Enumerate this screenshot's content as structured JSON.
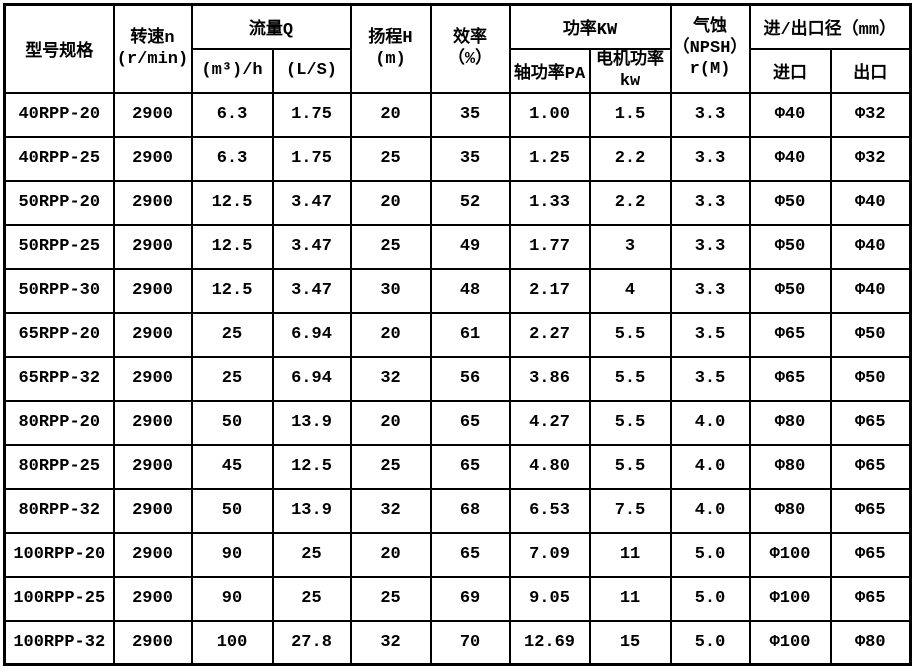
{
  "table": {
    "colors": {
      "border": "#000000",
      "text": "#000000",
      "background": "#ffffff"
    },
    "header": {
      "model": "型号规格",
      "speed_line1": "转速n",
      "speed_line2": "(r/min)",
      "flow_group": "流量Q",
      "flow_m3h": "(m³)/h",
      "flow_ls": "(L/S)",
      "head_line1": "扬程H",
      "head_line2": "(m)",
      "eff_line1": "效率",
      "eff_line2": "（%）",
      "power_group": "功率KW",
      "power_shaft": "轴功率PA",
      "power_motor_line1": "电机功率",
      "power_motor_line2": "kw",
      "npsh_line1": "气蚀",
      "npsh_line2": "（NPSH）",
      "npsh_line3": "r(M)",
      "port_group": "进/出口径（mm）",
      "port_in": "进口",
      "port_out": "出口"
    },
    "rows": [
      [
        "40RPP-20",
        "2900",
        "6.3",
        "1.75",
        "20",
        "35",
        "1.00",
        "1.5",
        "3.3",
        "Φ40",
        "Φ32"
      ],
      [
        "40RPP-25",
        "2900",
        "6.3",
        "1.75",
        "25",
        "35",
        "1.25",
        "2.2",
        "3.3",
        "Φ40",
        "Φ32"
      ],
      [
        "50RPP-20",
        "2900",
        "12.5",
        "3.47",
        "20",
        "52",
        "1.33",
        "2.2",
        "3.3",
        "Φ50",
        "Φ40"
      ],
      [
        "50RPP-25",
        "2900",
        "12.5",
        "3.47",
        "25",
        "49",
        "1.77",
        "3",
        "3.3",
        "Φ50",
        "Φ40"
      ],
      [
        "50RPP-30",
        "2900",
        "12.5",
        "3.47",
        "30",
        "48",
        "2.17",
        "4",
        "3.3",
        "Φ50",
        "Φ40"
      ],
      [
        "65RPP-20",
        "2900",
        "25",
        "6.94",
        "20",
        "61",
        "2.27",
        "5.5",
        "3.5",
        "Φ65",
        "Φ50"
      ],
      [
        "65RPP-32",
        "2900",
        "25",
        "6.94",
        "32",
        "56",
        "3.86",
        "5.5",
        "3.5",
        "Φ65",
        "Φ50"
      ],
      [
        "80RPP-20",
        "2900",
        "50",
        "13.9",
        "20",
        "65",
        "4.27",
        "5.5",
        "4.0",
        "Φ80",
        "Φ65"
      ],
      [
        "80RPP-25",
        "2900",
        "45",
        "12.5",
        "25",
        "65",
        "4.80",
        "5.5",
        "4.0",
        "Φ80",
        "Φ65"
      ],
      [
        "80RPP-32",
        "2900",
        "50",
        "13.9",
        "32",
        "68",
        "6.53",
        "7.5",
        "4.0",
        "Φ80",
        "Φ65"
      ],
      [
        "100RPP-20",
        "2900",
        "90",
        "25",
        "20",
        "65",
        "7.09",
        "11",
        "5.0",
        "Φ100",
        "Φ65"
      ],
      [
        "100RPP-25",
        "2900",
        "90",
        "25",
        "25",
        "69",
        "9.05",
        "11",
        "5.0",
        "Φ100",
        "Φ65"
      ],
      [
        "100RPP-32",
        "2900",
        "100",
        "27.8",
        "32",
        "70",
        "12.69",
        "15",
        "5.0",
        "Φ100",
        "Φ80"
      ]
    ]
  }
}
